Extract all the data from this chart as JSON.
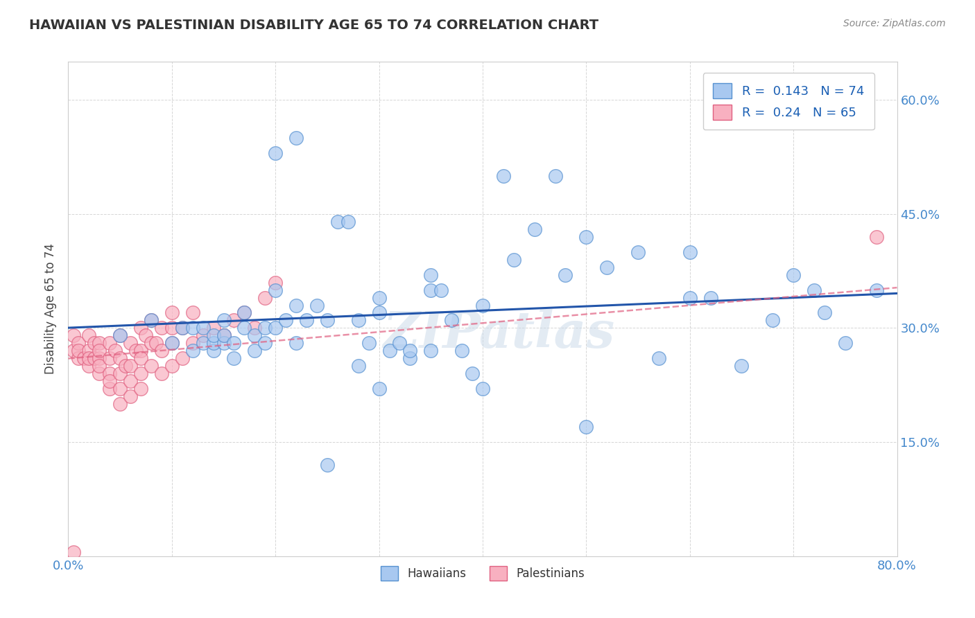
{
  "title": "HAWAIIAN VS PALESTINIAN DISABILITY AGE 65 TO 74 CORRELATION CHART",
  "source_text": "Source: ZipAtlas.com",
  "ylabel_text": "Disability Age 65 to 74",
  "xlim": [
    0.0,
    0.8
  ],
  "ylim": [
    0.0,
    0.65
  ],
  "xticks": [
    0.0,
    0.1,
    0.2,
    0.3,
    0.4,
    0.5,
    0.6,
    0.7,
    0.8
  ],
  "yticks": [
    0.0,
    0.15,
    0.3,
    0.45,
    0.6
  ],
  "hawaiian_R": 0.143,
  "hawaiian_N": 74,
  "palestinian_R": 0.24,
  "palestinian_N": 65,
  "hawaiian_color": "#a8c8f0",
  "hawaiian_edge_color": "#5590d0",
  "palestinian_color": "#f8b0c0",
  "palestinian_edge_color": "#e06080",
  "hawaiian_line_color": "#2255aa",
  "palestinian_line_color": "#e06080",
  "watermark": "ZIPatlas",
  "background_color": "#ffffff",
  "grid_color": "#cccccc",
  "hawaiian_x": [
    0.05,
    0.08,
    0.1,
    0.11,
    0.12,
    0.12,
    0.13,
    0.13,
    0.14,
    0.14,
    0.14,
    0.15,
    0.15,
    0.15,
    0.16,
    0.16,
    0.17,
    0.17,
    0.18,
    0.18,
    0.19,
    0.19,
    0.2,
    0.2,
    0.21,
    0.22,
    0.22,
    0.23,
    0.24,
    0.25,
    0.26,
    0.27,
    0.28,
    0.29,
    0.3,
    0.3,
    0.31,
    0.32,
    0.33,
    0.35,
    0.35,
    0.36,
    0.37,
    0.38,
    0.39,
    0.4,
    0.42,
    0.43,
    0.45,
    0.47,
    0.48,
    0.5,
    0.52,
    0.55,
    0.57,
    0.6,
    0.62,
    0.65,
    0.68,
    0.7,
    0.72,
    0.73,
    0.75,
    0.78,
    0.3,
    0.25,
    0.2,
    0.4,
    0.5,
    0.35,
    0.28,
    0.33,
    0.22,
    0.6
  ],
  "hawaiian_y": [
    0.29,
    0.31,
    0.28,
    0.3,
    0.27,
    0.3,
    0.28,
    0.3,
    0.27,
    0.28,
    0.29,
    0.28,
    0.29,
    0.31,
    0.26,
    0.28,
    0.3,
    0.32,
    0.27,
    0.29,
    0.28,
    0.3,
    0.3,
    0.35,
    0.31,
    0.28,
    0.33,
    0.31,
    0.33,
    0.31,
    0.44,
    0.44,
    0.31,
    0.28,
    0.34,
    0.32,
    0.27,
    0.28,
    0.26,
    0.35,
    0.37,
    0.35,
    0.31,
    0.27,
    0.24,
    0.33,
    0.5,
    0.39,
    0.43,
    0.5,
    0.37,
    0.42,
    0.38,
    0.4,
    0.26,
    0.4,
    0.34,
    0.25,
    0.31,
    0.37,
    0.35,
    0.32,
    0.28,
    0.35,
    0.22,
    0.12,
    0.53,
    0.22,
    0.17,
    0.27,
    0.25,
    0.27,
    0.55,
    0.34
  ],
  "palestinian_x": [
    0.005,
    0.005,
    0.01,
    0.01,
    0.01,
    0.015,
    0.02,
    0.02,
    0.02,
    0.02,
    0.025,
    0.025,
    0.03,
    0.03,
    0.03,
    0.03,
    0.03,
    0.04,
    0.04,
    0.04,
    0.04,
    0.04,
    0.045,
    0.05,
    0.05,
    0.05,
    0.05,
    0.05,
    0.055,
    0.06,
    0.06,
    0.06,
    0.06,
    0.065,
    0.07,
    0.07,
    0.07,
    0.07,
    0.07,
    0.075,
    0.08,
    0.08,
    0.08,
    0.085,
    0.09,
    0.09,
    0.09,
    0.1,
    0.1,
    0.1,
    0.1,
    0.11,
    0.11,
    0.12,
    0.12,
    0.13,
    0.14,
    0.15,
    0.16,
    0.17,
    0.18,
    0.19,
    0.2,
    0.005,
    0.78
  ],
  "palestinian_y": [
    0.29,
    0.27,
    0.28,
    0.26,
    0.27,
    0.26,
    0.27,
    0.29,
    0.25,
    0.26,
    0.26,
    0.28,
    0.24,
    0.26,
    0.28,
    0.25,
    0.27,
    0.22,
    0.24,
    0.26,
    0.28,
    0.23,
    0.27,
    0.2,
    0.22,
    0.24,
    0.26,
    0.29,
    0.25,
    0.21,
    0.23,
    0.25,
    0.28,
    0.27,
    0.22,
    0.24,
    0.27,
    0.3,
    0.26,
    0.29,
    0.25,
    0.28,
    0.31,
    0.28,
    0.24,
    0.27,
    0.3,
    0.25,
    0.28,
    0.32,
    0.3,
    0.26,
    0.3,
    0.28,
    0.32,
    0.29,
    0.3,
    0.29,
    0.31,
    0.32,
    0.3,
    0.34,
    0.36,
    0.005,
    0.42
  ]
}
